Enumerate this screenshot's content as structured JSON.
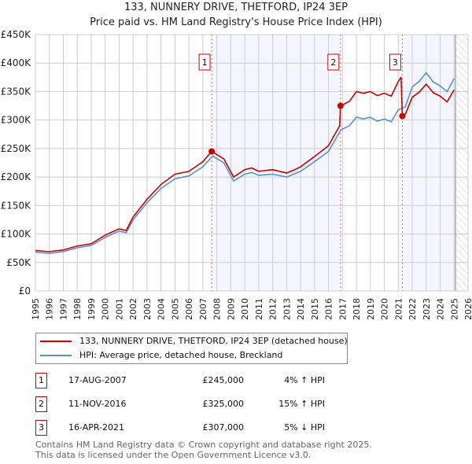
{
  "chart_data": {
    "type": "line",
    "title": "133, NUNNERY DRIVE, THETFORD, IP24 3EP",
    "subtitle": "Price paid vs. HM Land Registry's House Price Index (HPI)",
    "xlim": [
      1995,
      2026
    ],
    "ylim": [
      0,
      450000
    ],
    "x_ticks": [
      "1995",
      "1996",
      "1997",
      "1998",
      "1999",
      "2000",
      "2001",
      "2002",
      "2003",
      "2004",
      "2005",
      "2006",
      "2007",
      "2008",
      "2009",
      "2010",
      "2011",
      "2012",
      "2013",
      "2014",
      "2015",
      "2016",
      "2017",
      "2018",
      "2019",
      "2020",
      "2021",
      "2022",
      "2023",
      "2024",
      "2025",
      "2026"
    ],
    "y_ticks": [
      {
        "v": 0,
        "l": "£0"
      },
      {
        "v": 50000,
        "l": "£50K"
      },
      {
        "v": 100000,
        "l": "£100K"
      },
      {
        "v": 150000,
        "l": "£150K"
      },
      {
        "v": 200000,
        "l": "£200K"
      },
      {
        "v": 250000,
        "l": "£250K"
      },
      {
        "v": 300000,
        "l": "£300K"
      },
      {
        "v": 350000,
        "l": "£350K"
      },
      {
        "v": 400000,
        "l": "£400K"
      },
      {
        "v": 450000,
        "l": "£450K"
      }
    ],
    "grid": true,
    "forecast_start": 2025.1,
    "series": [
      {
        "name": "133, NUNNERY DRIVE, THETFORD, IP24 3EP (detached house)",
        "color": "#cc0000",
        "x": [
          1995,
          1996,
          1997,
          1998,
          1999,
          2000,
          2001,
          2001.5,
          2002,
          2003,
          2004,
          2005,
          2006,
          2007,
          2007.63,
          2008.5,
          2009.2,
          2010,
          2010.5,
          2011,
          2012,
          2013,
          2013.5,
          2014,
          2015,
          2016,
          2016.8,
          2016.86,
          2017.5,
          2018,
          2018.5,
          2019,
          2019.5,
          2020,
          2020.5,
          2021,
          2021.2,
          2021.29,
          2021.5,
          2022,
          2022.5,
          2023,
          2023.5,
          2024,
          2024.5,
          2025
        ],
        "y": [
          71000,
          69000,
          72000,
          79000,
          83000,
          98000,
          109000,
          106000,
          130000,
          161000,
          187000,
          205000,
          210000,
          227000,
          245000,
          232000,
          200000,
          213000,
          216000,
          210000,
          213000,
          207000,
          212000,
          218000,
          236000,
          255000,
          290000,
          325000,
          333000,
          350000,
          347000,
          350000,
          343000,
          347000,
          342000,
          368000,
          375000,
          307000,
          310000,
          340000,
          349000,
          363000,
          348000,
          342000,
          332000,
          353000
        ]
      },
      {
        "name": "HPI: Average price, detached house, Breckland",
        "color": "#5b8fd0",
        "x": [
          1995,
          1996,
          1997,
          1998,
          1999,
          2000,
          2001,
          2001.5,
          2002,
          2003,
          2004,
          2005,
          2006,
          2007,
          2007.7,
          2008.5,
          2009.2,
          2010,
          2010.5,
          2011,
          2012,
          2013,
          2013.5,
          2014,
          2015,
          2016,
          2016.9,
          2017.5,
          2018,
          2018.5,
          2019,
          2019.5,
          2020,
          2020.5,
          2021,
          2021.5,
          2022,
          2022.5,
          2023,
          2023.5,
          2024,
          2024.5,
          2025
        ],
        "y": [
          68000,
          66000,
          69000,
          76000,
          80000,
          94000,
          105000,
          102000,
          125000,
          155000,
          180000,
          197000,
          202000,
          218000,
          237000,
          225000,
          193000,
          205000,
          208000,
          203000,
          205000,
          200000,
          205000,
          210000,
          227000,
          245000,
          283000,
          290000,
          305000,
          302000,
          305000,
          298000,
          302000,
          297000,
          318000,
          323000,
          358000,
          368000,
          383000,
          367000,
          360000,
          350000,
          373000
        ]
      }
    ],
    "sales": [
      {
        "id": "1",
        "x": 2007.63,
        "price": 245000,
        "date": "17-AUG-2007",
        "price_label": "£245,000",
        "hpi": "4% ↑ HPI"
      },
      {
        "id": "2",
        "x": 2016.86,
        "price": 325000,
        "date": "11-NOV-2016",
        "price_label": "£325,000",
        "hpi": "15% ↑ HPI"
      },
      {
        "id": "3",
        "x": 2021.29,
        "price": 307000,
        "date": "16-APR-2021",
        "price_label": "£307,000",
        "hpi": "5% ↓ HPI"
      }
    ]
  },
  "footer": {
    "line1": "Contains HM Land Registry data © Crown copyright and database right 2025.",
    "line2": "This data is licensed under the Open Government Licence v3.0."
  }
}
